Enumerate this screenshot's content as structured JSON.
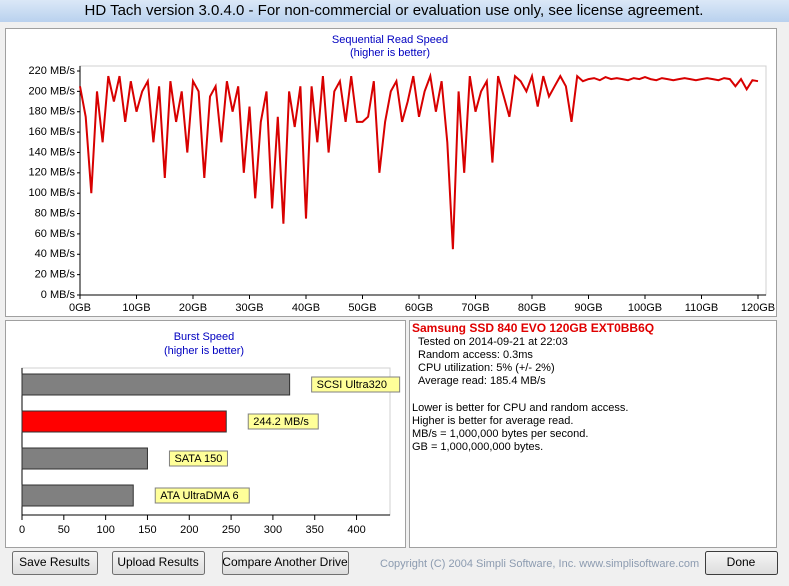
{
  "window": {
    "title": "HD Tach version 3.0.4.0  - For non-commercial or evaluation use only, see license agreement."
  },
  "chart_data": [
    {
      "type": "line",
      "title": "Sequential Read Speed",
      "subtitle": "(higher is better)",
      "color": "#d80000",
      "x": [
        0,
        1,
        2,
        3,
        4,
        5,
        6,
        7,
        8,
        9,
        10,
        11,
        12,
        13,
        14,
        15,
        16,
        17,
        18,
        19,
        20,
        21,
        22,
        23,
        24,
        25,
        26,
        27,
        28,
        29,
        30,
        31,
        32,
        33,
        34,
        35,
        36,
        37,
        38,
        39,
        40,
        41,
        42,
        43,
        44,
        45,
        46,
        47,
        48,
        49,
        50,
        51,
        52,
        53,
        54,
        55,
        56,
        57,
        58,
        59,
        60,
        61,
        62,
        63,
        64,
        65,
        66,
        67,
        68,
        69,
        70,
        71,
        72,
        73,
        74,
        75,
        76,
        77,
        78,
        79,
        80,
        81,
        82,
        83,
        84,
        85,
        86,
        87,
        88,
        89,
        90,
        91,
        92,
        93,
        94,
        95,
        96,
        97,
        98,
        99,
        100,
        101,
        102,
        103,
        104,
        105,
        106,
        107,
        108,
        109,
        110,
        111,
        112,
        113,
        114,
        115,
        116,
        117,
        118,
        119,
        120
      ],
      "values": [
        205,
        175,
        100,
        200,
        150,
        215,
        190,
        215,
        170,
        210,
        180,
        200,
        210,
        150,
        205,
        115,
        210,
        170,
        200,
        140,
        210,
        200,
        115,
        195,
        205,
        150,
        210,
        180,
        205,
        120,
        185,
        95,
        170,
        200,
        85,
        175,
        70,
        200,
        165,
        205,
        75,
        205,
        150,
        215,
        140,
        200,
        210,
        170,
        215,
        170,
        170,
        175,
        210,
        120,
        170,
        200,
        210,
        170,
        190,
        215,
        175,
        200,
        215,
        180,
        210,
        150,
        45,
        200,
        120,
        215,
        180,
        200,
        210,
        130,
        215,
        195,
        175,
        215,
        210,
        200,
        215,
        185,
        215,
        195,
        205,
        215,
        205,
        170,
        215,
        210,
        212,
        213,
        211,
        214,
        212,
        213,
        212,
        211,
        213,
        212,
        214,
        212,
        211,
        213,
        212,
        211,
        212,
        213,
        212,
        211,
        212,
        213,
        212,
        211,
        213,
        212,
        205,
        212,
        202,
        211,
        210
      ],
      "xlim": [
        0,
        120
      ],
      "xticks": [
        {
          "value": 0,
          "label": "0GB"
        },
        {
          "value": 10,
          "label": "10GB"
        },
        {
          "value": 20,
          "label": "20GB"
        },
        {
          "value": 30,
          "label": "30GB"
        },
        {
          "value": 40,
          "label": "40GB"
        },
        {
          "value": 50,
          "label": "50GB"
        },
        {
          "value": 60,
          "label": "60GB"
        },
        {
          "value": 70,
          "label": "70GB"
        },
        {
          "value": 80,
          "label": "80GB"
        },
        {
          "value": 90,
          "label": "90GB"
        },
        {
          "value": 100,
          "label": "100GB"
        },
        {
          "value": 110,
          "label": "110GB"
        },
        {
          "value": 120,
          "label": "120GB"
        }
      ],
      "ylim": [
        0,
        220
      ],
      "yticks": [
        {
          "value": 0,
          "label": "0 MB/s"
        },
        {
          "value": 20,
          "label": "20 MB/s"
        },
        {
          "value": 40,
          "label": "40 MB/s"
        },
        {
          "value": 60,
          "label": "60 MB/s"
        },
        {
          "value": 80,
          "label": "80 MB/s"
        },
        {
          "value": 100,
          "label": "100 MB/s"
        },
        {
          "value": 120,
          "label": "120 MB/s"
        },
        {
          "value": 140,
          "label": "140 MB/s"
        },
        {
          "value": 160,
          "label": "160 MB/s"
        },
        {
          "value": 180,
          "label": "180 MB/s"
        },
        {
          "value": 200,
          "label": "200 MB/s"
        },
        {
          "value": 220,
          "label": "220 MB/s"
        }
      ]
    },
    {
      "type": "bar",
      "title": "Burst Speed",
      "subtitle": "(higher is better)",
      "categories": [
        "SCSI Ultra320",
        null,
        "SATA 150",
        "ATA UltraDMA 6"
      ],
      "values": [
        320,
        244.2,
        150,
        133
      ],
      "value_labels": [
        null,
        "244.2 MB/s",
        null,
        null
      ],
      "colors": [
        "#808080",
        "#ff0000",
        "#808080",
        "#808080"
      ],
      "xlim": [
        0,
        440
      ],
      "xticks": [
        0,
        50,
        100,
        150,
        200,
        250,
        300,
        350,
        400
      ]
    }
  ],
  "info": {
    "title": "Samsung SSD 840 EVO 120GB EXT0BB6Q",
    "results": [
      "Tested on 2014-09-21 at 22:03",
      "Random access: 0.3ms",
      "CPU utilization: 5% (+/- 2%)",
      "Average read: 185.4 MB/s"
    ],
    "notes": [
      "Lower is better for CPU and random access.",
      "Higher is better for average read.",
      "MB/s = 1,000,000 bytes per second.",
      "GB = 1,000,000,000 bytes."
    ]
  },
  "buttons": [
    "Save Results",
    "Upload Results",
    "Compare Another Drive",
    "Done"
  ],
  "copyright": "Copyright (C) 2004 Simpli Software, Inc. www.simplisoftware.com"
}
